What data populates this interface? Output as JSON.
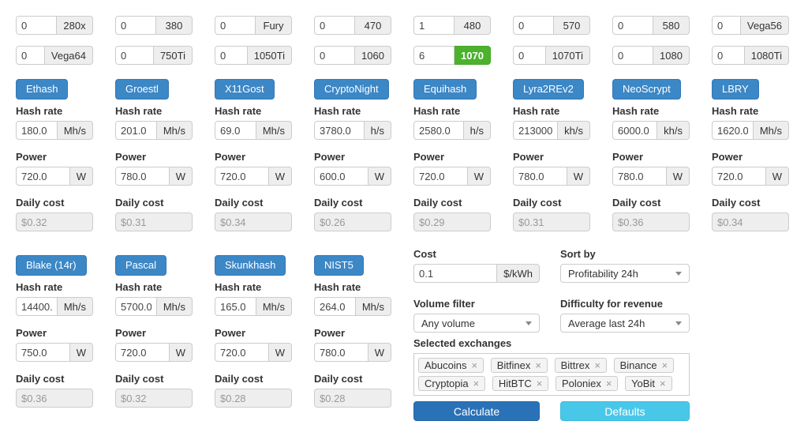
{
  "labels": {
    "hash_rate": "Hash rate",
    "power": "Power",
    "daily_cost": "Daily cost",
    "watt": "W"
  },
  "gpus_row1": [
    {
      "count": "0",
      "name": "280x"
    },
    {
      "count": "0",
      "name": "380"
    },
    {
      "count": "0",
      "name": "Fury"
    },
    {
      "count": "0",
      "name": "470"
    },
    {
      "count": "1",
      "name": "480"
    },
    {
      "count": "0",
      "name": "570"
    },
    {
      "count": "0",
      "name": "580"
    },
    {
      "count": "0",
      "name": "Vega56"
    }
  ],
  "gpus_row2": [
    {
      "count": "0",
      "name": "Vega64"
    },
    {
      "count": "0",
      "name": "750Ti"
    },
    {
      "count": "0",
      "name": "1050Ti"
    },
    {
      "count": "0",
      "name": "1060"
    },
    {
      "count": "6",
      "name": "1070",
      "highlight": true
    },
    {
      "count": "0",
      "name": "1070Ti"
    },
    {
      "count": "0",
      "name": "1080"
    },
    {
      "count": "0",
      "name": "1080Ti"
    }
  ],
  "algos_row1": [
    {
      "name": "Ethash",
      "hashrate": "180.0",
      "unit": "Mh/s",
      "power": "720.0",
      "daily_cost": "$0.32"
    },
    {
      "name": "Groestl",
      "hashrate": "201.0",
      "unit": "Mh/s",
      "power": "780.0",
      "daily_cost": "$0.31"
    },
    {
      "name": "X11Gost",
      "hashrate": "69.0",
      "unit": "Mh/s",
      "power": "720.0",
      "daily_cost": "$0.34"
    },
    {
      "name": "CryptoNight",
      "hashrate": "3780.0",
      "unit": "h/s",
      "power": "600.0",
      "daily_cost": "$0.26"
    },
    {
      "name": "Equihash",
      "hashrate": "2580.0",
      "unit": "h/s",
      "power": "720.0",
      "daily_cost": "$0.29"
    },
    {
      "name": "Lyra2REv2",
      "hashrate": "213000.0",
      "unit": "kh/s",
      "power": "780.0",
      "daily_cost": "$0.31"
    },
    {
      "name": "NeoScrypt",
      "hashrate": "6000.0",
      "unit": "kh/s",
      "power": "780.0",
      "daily_cost": "$0.36"
    },
    {
      "name": "LBRY",
      "hashrate": "1620.0",
      "unit": "Mh/s",
      "power": "720.0",
      "daily_cost": "$0.34"
    }
  ],
  "algos_row2": [
    {
      "name": "Blake (14r)",
      "hashrate": "14400.0",
      "unit": "Mh/s",
      "power": "750.0",
      "daily_cost": "$0.36"
    },
    {
      "name": "Pascal",
      "hashrate": "5700.0",
      "unit": "Mh/s",
      "power": "720.0",
      "daily_cost": "$0.32"
    },
    {
      "name": "Skunkhash",
      "hashrate": "165.0",
      "unit": "Mh/s",
      "power": "720.0",
      "daily_cost": "$0.28"
    },
    {
      "name": "NIST5",
      "hashrate": "264.0",
      "unit": "Mh/s",
      "power": "780.0",
      "daily_cost": "$0.28"
    }
  ],
  "settings": {
    "cost": {
      "label": "Cost",
      "value": "0.1",
      "unit": "$/kWh"
    },
    "sort_by": {
      "label": "Sort by",
      "value": "Profitability 24h"
    },
    "volume": {
      "label": "Volume filter",
      "value": "Any volume"
    },
    "difficulty": {
      "label": "Difficulty for revenue",
      "value": "Average last 24h"
    },
    "exchanges": {
      "label": "Selected exchanges",
      "items": [
        "Abucoins",
        "Bitfinex",
        "Bittrex",
        "Binance",
        "Cryptopia",
        "HitBTC",
        "Poloniex",
        "YoBit"
      ],
      "remove_glyph": "×"
    },
    "calculate_label": "Calculate",
    "defaults_label": "Defaults"
  },
  "colors": {
    "algo_button_blue": "#3c87c6",
    "selected_gpu_green": "#4cb22d",
    "calculate_blue": "#2a72b8",
    "defaults_cyan": "#49c7e9",
    "addon_gray": "#eeeeee",
    "border_gray": "#cccccc"
  }
}
